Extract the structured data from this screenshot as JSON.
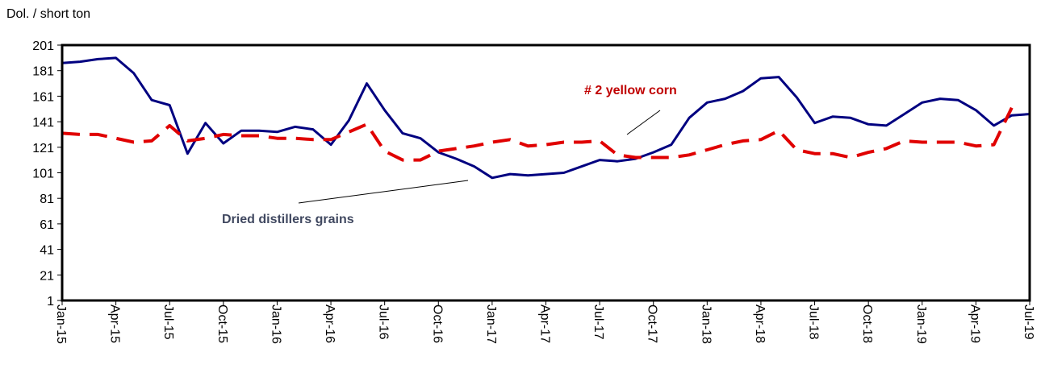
{
  "chart_data": {
    "type": "line",
    "y_label": "Dol. / short ton",
    "categories": [
      "Jan-15",
      null,
      null,
      "Apr-15",
      null,
      null,
      "Jul-15",
      null,
      null,
      "Oct-15",
      null,
      null,
      "Jan-16",
      null,
      null,
      "Apr-16",
      null,
      null,
      "Jul-16",
      null,
      null,
      "Oct-16",
      null,
      null,
      "Jan-17",
      null,
      null,
      "Apr-17",
      null,
      null,
      "Jul-17",
      null,
      null,
      "Oct-17",
      null,
      null,
      "Jan-18",
      null,
      null,
      "Apr-18",
      null,
      null,
      "Jul-18",
      null,
      null,
      "Oct-18",
      null,
      null,
      "Jan-19",
      null,
      null,
      "Apr-19",
      null,
      null,
      "Jul-19"
    ],
    "series": [
      {
        "name": "Dried distillers grains",
        "color": "#000080",
        "dashed": false,
        "values": [
          187,
          188,
          190,
          191,
          179,
          158,
          154,
          116,
          140,
          124,
          134,
          134,
          133,
          137,
          135,
          123,
          142,
          171,
          150,
          132,
          128,
          117,
          112,
          106,
          97,
          100,
          99,
          100,
          101,
          106,
          111,
          110,
          112,
          117,
          123,
          144,
          156,
          159,
          165,
          175,
          176,
          160,
          140,
          145,
          144,
          139,
          138,
          147,
          156,
          159,
          158,
          150,
          138,
          146,
          147
        ]
      },
      {
        "name": "# 2 yellow corn",
        "color": "#e00000",
        "dashed": true,
        "values": [
          132,
          131,
          131,
          128,
          125,
          126,
          138,
          126,
          128,
          131,
          130,
          130,
          128,
          128,
          127,
          127,
          133,
          139,
          118,
          111,
          111,
          118,
          120,
          122,
          125,
          127,
          122,
          123,
          125,
          125,
          126,
          115,
          113,
          113,
          113,
          115,
          119,
          123,
          126,
          127,
          134,
          119,
          116,
          116,
          113,
          117,
          120,
          126,
          125,
          125,
          125,
          122,
          123,
          152,
          null
        ]
      }
    ],
    "ylim": [
      1,
      201
    ],
    "yticks": [
      1,
      21,
      41,
      61,
      81,
      101,
      121,
      141,
      161,
      181,
      201
    ]
  }
}
